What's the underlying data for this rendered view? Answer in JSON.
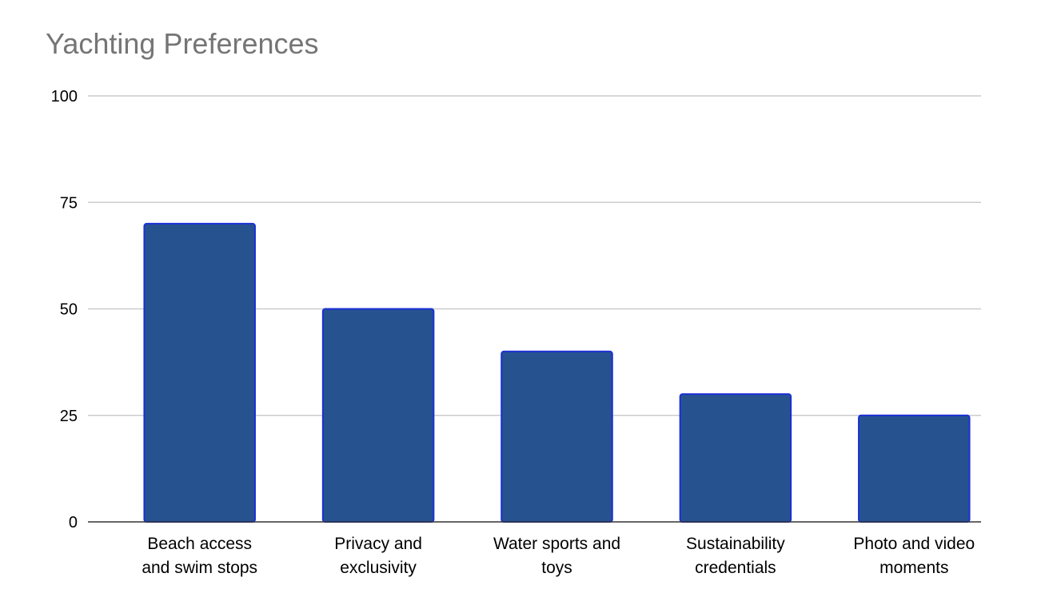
{
  "chart_data": {
    "type": "bar",
    "title": "Yachting Preferences",
    "xlabel": "",
    "ylabel": "",
    "categories": [
      [
        "Beach access",
        "and swim stops"
      ],
      [
        "Privacy and",
        "exclusivity"
      ],
      [
        "Water sports and",
        "toys"
      ],
      [
        "Sustainability",
        "credentials"
      ],
      [
        "Photo and video",
        "moments"
      ]
    ],
    "values": [
      70,
      50,
      40,
      30,
      25
    ],
    "ylim": [
      0,
      100
    ],
    "yticks": [
      0,
      25,
      50,
      75,
      100
    ],
    "grid": true,
    "legend": "none",
    "colors": {
      "bar_fill": "#26538F",
      "bar_stroke": "#1B2FD6",
      "gridline": "#CCCCCC",
      "baseline": "#333333",
      "title": "#757575"
    }
  }
}
